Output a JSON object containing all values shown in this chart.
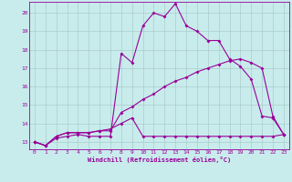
{
  "xlabel": "Windchill (Refroidissement éolien,°C)",
  "background_color": "#c8ecec",
  "line_color": "#990099",
  "grid_color": "#aacccc",
  "xlim": [
    -0.5,
    23.5
  ],
  "ylim": [
    12.6,
    20.6
  ],
  "xticks": [
    0,
    1,
    2,
    3,
    4,
    5,
    6,
    7,
    8,
    9,
    10,
    11,
    12,
    13,
    14,
    15,
    16,
    17,
    18,
    19,
    20,
    21,
    22,
    23
  ],
  "yticks": [
    13,
    14,
    15,
    16,
    17,
    18,
    19,
    20
  ],
  "line1_x": [
    0,
    1,
    2,
    3,
    4,
    5,
    6,
    7,
    8,
    9,
    10,
    11,
    12,
    13,
    14,
    15,
    16,
    17,
    18,
    19,
    20,
    21,
    22,
    23
  ],
  "line1_y": [
    13.0,
    12.8,
    13.2,
    13.3,
    13.4,
    13.3,
    13.3,
    13.3,
    17.8,
    17.3,
    19.3,
    20.0,
    19.8,
    20.5,
    19.3,
    19.0,
    18.5,
    18.5,
    17.5,
    17.1,
    16.4,
    14.4,
    14.3,
    13.4
  ],
  "line2_x": [
    0,
    1,
    2,
    3,
    4,
    5,
    6,
    7,
    8,
    9,
    10,
    11,
    12,
    13,
    14,
    15,
    16,
    17,
    18,
    19,
    20,
    21,
    22,
    23
  ],
  "line2_y": [
    13.0,
    12.8,
    13.3,
    13.5,
    13.5,
    13.5,
    13.6,
    13.6,
    14.6,
    14.9,
    15.3,
    15.6,
    16.0,
    16.3,
    16.5,
    16.8,
    17.0,
    17.2,
    17.4,
    17.5,
    17.3,
    17.0,
    14.4,
    13.4
  ],
  "line3_x": [
    0,
    1,
    2,
    3,
    4,
    5,
    6,
    7,
    8,
    9,
    10,
    11,
    12,
    13,
    14,
    15,
    16,
    17,
    18,
    19,
    20,
    21,
    22,
    23
  ],
  "line3_y": [
    13.0,
    12.8,
    13.3,
    13.5,
    13.5,
    13.5,
    13.6,
    13.7,
    14.0,
    14.3,
    13.3,
    13.3,
    13.3,
    13.3,
    13.3,
    13.3,
    13.3,
    13.3,
    13.3,
    13.3,
    13.3,
    13.3,
    13.3,
    13.4
  ]
}
